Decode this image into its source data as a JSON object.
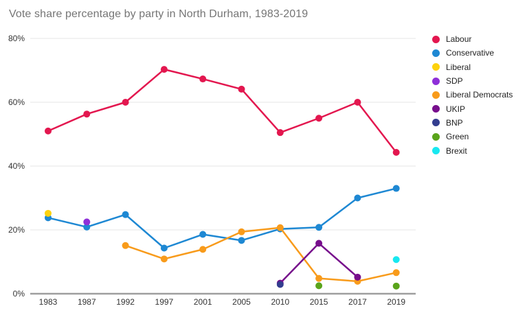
{
  "chart_data": {
    "type": "line",
    "title": "Vote share percentage by party in North Durham, 1983-2019",
    "categories": [
      "1983",
      "1987",
      "1992",
      "1997",
      "2001",
      "2005",
      "2010",
      "2015",
      "2017",
      "2019"
    ],
    "xlabel": "",
    "ylabel": "",
    "ylim": [
      0,
      80
    ],
    "yticks": [
      0,
      20,
      40,
      60,
      80
    ],
    "ytick_suffix": "%",
    "grid": true,
    "legend_position": "right",
    "background_color": "#ffffff",
    "gridline_color": "#e6e6e6",
    "baseline_color": "#9e9e9e",
    "title_color": "#757575",
    "tick_label_color": "#333333",
    "legend_label_color": "#212121",
    "series": [
      {
        "name": "Labour",
        "color": "#E3174F",
        "values": [
          51,
          56.3,
          60,
          70.3,
          67.3,
          64.1,
          50.5,
          55,
          60,
          44.3
        ]
      },
      {
        "name": "Conservative",
        "color": "#1E88D3",
        "values": [
          23.8,
          20.9,
          24.8,
          14.3,
          18.6,
          16.7,
          20.3,
          20.8,
          30,
          33
        ]
      },
      {
        "name": "Liberal",
        "color": "#FDD20E",
        "values": [
          25.2,
          null,
          null,
          null,
          null,
          null,
          null,
          null,
          null,
          null
        ]
      },
      {
        "name": "SDP",
        "color": "#8E2FD8",
        "values": [
          null,
          22.5,
          null,
          null,
          null,
          null,
          null,
          null,
          null,
          null
        ]
      },
      {
        "name": "Liberal Democrats",
        "color": "#F89B1B",
        "values": [
          null,
          null,
          15.1,
          10.9,
          13.9,
          19.4,
          20.7,
          4.8,
          3.9,
          6.6
        ]
      },
      {
        "name": "UKIP",
        "color": "#770E8C",
        "values": [
          null,
          null,
          null,
          null,
          null,
          null,
          3.3,
          15.8,
          5.2,
          null
        ]
      },
      {
        "name": "BNP",
        "color": "#333D8F",
        "values": [
          null,
          null,
          null,
          null,
          null,
          null,
          2.9,
          null,
          null,
          null
        ]
      },
      {
        "name": "Green",
        "color": "#5AA41B",
        "values": [
          null,
          null,
          null,
          null,
          null,
          null,
          null,
          2.5,
          null,
          2.4
        ]
      },
      {
        "name": "Brexit",
        "color": "#18E8F0",
        "values": [
          null,
          null,
          null,
          null,
          null,
          null,
          null,
          null,
          null,
          10.7
        ]
      }
    ]
  }
}
